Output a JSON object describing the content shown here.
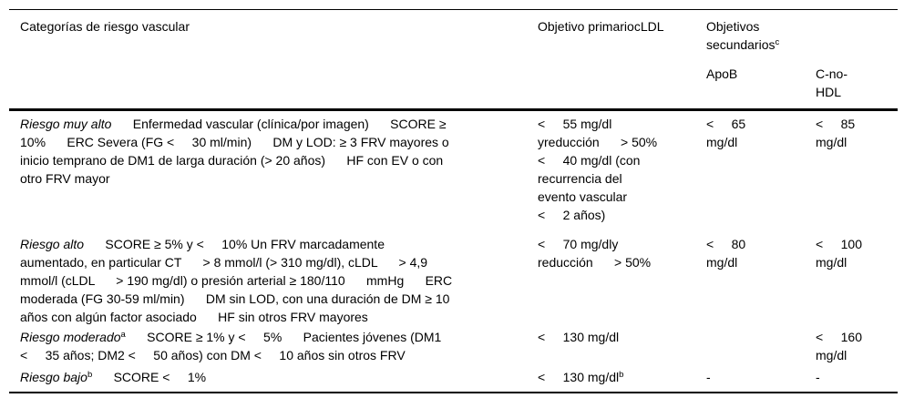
{
  "table": {
    "header": {
      "categories": "Categorías de riesgo vascular",
      "primary_objective": "Objetivo primariocLDL",
      "secondary_objectives": [
        {
          "t": "Objetivos\nsecundarios"
        },
        {
          "t": "c",
          "sup": true
        }
      ],
      "apob": "ApoB",
      "c_no_hdl": "C-no-\nHDL"
    },
    "rows": [
      {
        "category": [
          {
            "t": "Riesgo muy alto",
            "italic": true
          },
          {
            "t": "      Enfermedad vascular (clínica/por imagen)      SCORE ≥\n10%      ERC Severa (FG <     30 ml/min)      DM y LOD: ≥ 3 FRV mayores o\ninicio temprano de DM1 de larga duración (> 20 años)      HF con EV o con\notro FRV mayor"
          }
        ],
        "primary": [
          {
            "t": "<     55 mg/dl\nyreducción      > 50%\n<     40 mg/dl (con\nrecurrencia del\nevento vascular\n<     2 años)"
          }
        ],
        "apob": [
          {
            "t": "<     65\nmg/dl"
          }
        ],
        "c_no_hdl": [
          {
            "t": "<     85\nmg/dl"
          }
        ]
      },
      {
        "category": [
          {
            "t": "Riesgo alto",
            "italic": true
          },
          {
            "t": "      SCORE ≥ 5% y <     10% Un FRV marcadamente\naumentado, en particular CT      > 8 mmol/l (> 310 mg/dl), cLDL      > 4,9\nmmol/l (cLDL      > 190 mg/dl) o presión arterial ≥ 180/110      mmHg      ERC\nmoderada (FG 30-59 ml/min)      DM sin LOD, con una duración de DM ≥ 10\naños con algún factor asociado      HF sin otros FRV mayores"
          }
        ],
        "primary": [
          {
            "t": "<     70 mg/dly\nreducción      > 50%"
          }
        ],
        "apob": [
          {
            "t": "<     80\nmg/dl"
          }
        ],
        "c_no_hdl": [
          {
            "t": "<     100\nmg/dl"
          }
        ]
      },
      {
        "category": [
          {
            "t": "Riesgo moderado",
            "italic": true
          },
          {
            "t": "a",
            "sup": true
          },
          {
            "t": "      SCORE ≥ 1% y <     5%      Pacientes jóvenes (DM1\n<     35 años; DM2 <     50 años) con DM <     10 años sin otros FRV"
          }
        ],
        "primary": [
          {
            "t": "<     130 mg/dl"
          }
        ],
        "apob": [
          {
            "t": ""
          }
        ],
        "c_no_hdl": [
          {
            "t": "<     160\nmg/dl"
          }
        ]
      },
      {
        "category": [
          {
            "t": "Riesgo bajo",
            "italic": true
          },
          {
            "t": "b",
            "sup": true
          },
          {
            "t": "      SCORE <     1%"
          }
        ],
        "primary": [
          {
            "t": "<     130 mg/dl"
          },
          {
            "t": "b",
            "sup": true
          }
        ],
        "apob": [
          {
            "t": "-"
          }
        ],
        "c_no_hdl": [
          {
            "t": "-"
          }
        ]
      }
    ]
  }
}
